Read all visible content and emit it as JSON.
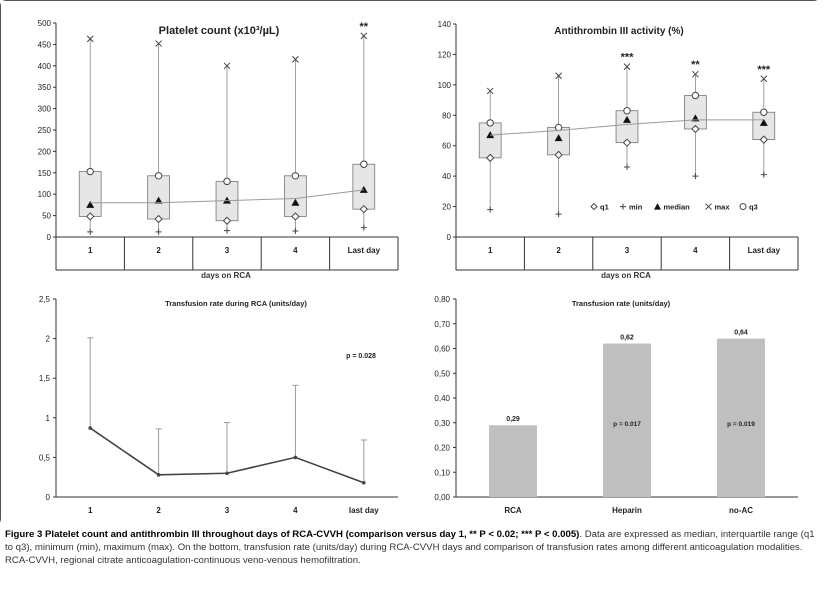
{
  "caption": {
    "label": "Figure 3",
    "title": "Platelet count and antithrombin III throughout days of RCA-CVVH (comparison versus day 1, ** P < 0.02; *** P < 0.005)",
    "body": "Data are expressed as median, interquartile range (q1 to q3), minimum (min), maximum (max). On the bottom, transfusion rate (units/day) during RCA-CVVH days and comparison of transfusion rates among different anticoagulation modalities. RCA-CVVH, regional citrate anticoagulation-continuous veno-venous hemofiltration."
  },
  "chart_data": [
    {
      "type": "box",
      "title": "Platelet count (x10³/µL)",
      "xlabel": "days on RCA",
      "categories": [
        "1",
        "2",
        "3",
        "4",
        "Last day"
      ],
      "ylim": [
        0,
        500
      ],
      "yticks": [
        0,
        50,
        100,
        150,
        200,
        250,
        300,
        350,
        400,
        450,
        500
      ],
      "q1": [
        48,
        42,
        38,
        48,
        65
      ],
      "q3": [
        153,
        143,
        130,
        143,
        170
      ],
      "median": [
        75,
        85,
        85,
        80,
        110
      ],
      "min": [
        12,
        12,
        15,
        14,
        22
      ],
      "max": [
        463,
        452,
        400,
        415,
        470
      ],
      "trend": [
        80,
        80,
        85,
        90,
        110
      ],
      "significance": [
        "",
        "",
        "",
        "",
        "**"
      ],
      "colors": {
        "box": "#e6e6e6",
        "stroke": "#777777",
        "trend": "#9a9a9a"
      }
    },
    {
      "type": "box",
      "title": "Antithrombin III activity (%)",
      "xlabel": "days on RCA",
      "categories": [
        "1",
        "2",
        "3",
        "4",
        "Last day"
      ],
      "ylim": [
        0,
        140
      ],
      "yticks": [
        0,
        20,
        40,
        60,
        80,
        100,
        120,
        140
      ],
      "q1": [
        52,
        54,
        62,
        71,
        64
      ],
      "q3": [
        75,
        72,
        83,
        93,
        82
      ],
      "median": [
        67,
        65,
        77,
        78,
        75
      ],
      "min": [
        18,
        15,
        46,
        40,
        41
      ],
      "max": [
        96,
        106,
        112,
        107,
        104
      ],
      "trend": [
        67,
        70,
        74,
        77,
        77
      ],
      "significance": [
        "",
        "",
        "***",
        "**",
        "***"
      ],
      "legend": [
        "q1",
        "min",
        "median",
        "max",
        "q3"
      ],
      "colors": {
        "box": "#e6e6e6",
        "stroke": "#777777",
        "trend": "#9a9a9a"
      }
    },
    {
      "type": "line",
      "title": "Transfusion rate during RCA (units/day)",
      "categories": [
        "1",
        "2",
        "3",
        "4",
        "last day"
      ],
      "values": [
        0.87,
        0.28,
        0.3,
        0.5,
        0.18
      ],
      "error_upper": [
        2.01,
        0.86,
        0.94,
        1.41,
        0.72
      ],
      "ylim": [
        0,
        2.5
      ],
      "yticks": [
        "0",
        "0,5",
        "1",
        "1,5",
        "2",
        "2,5"
      ],
      "annotation": "p = 0.028",
      "colors": {
        "line": "#444444",
        "error": "#9a9a9a"
      }
    },
    {
      "type": "bar",
      "title": "Transfusion rate (units/day)",
      "categories": [
        "RCA",
        "Heparin",
        "no-AC"
      ],
      "values": [
        0.29,
        0.62,
        0.64
      ],
      "data_labels": [
        "0,29",
        "0,62",
        "0,64"
      ],
      "bar_annotations": [
        "",
        "p = 0.017",
        "p = 0.019"
      ],
      "ylim": [
        0,
        0.8
      ],
      "yticks": [
        "0,00",
        "0,10",
        "0,20",
        "0,30",
        "0,40",
        "0,50",
        "0,60",
        "0,70",
        "0,80"
      ],
      "colors": {
        "bar": "#bfbfbf"
      }
    }
  ]
}
